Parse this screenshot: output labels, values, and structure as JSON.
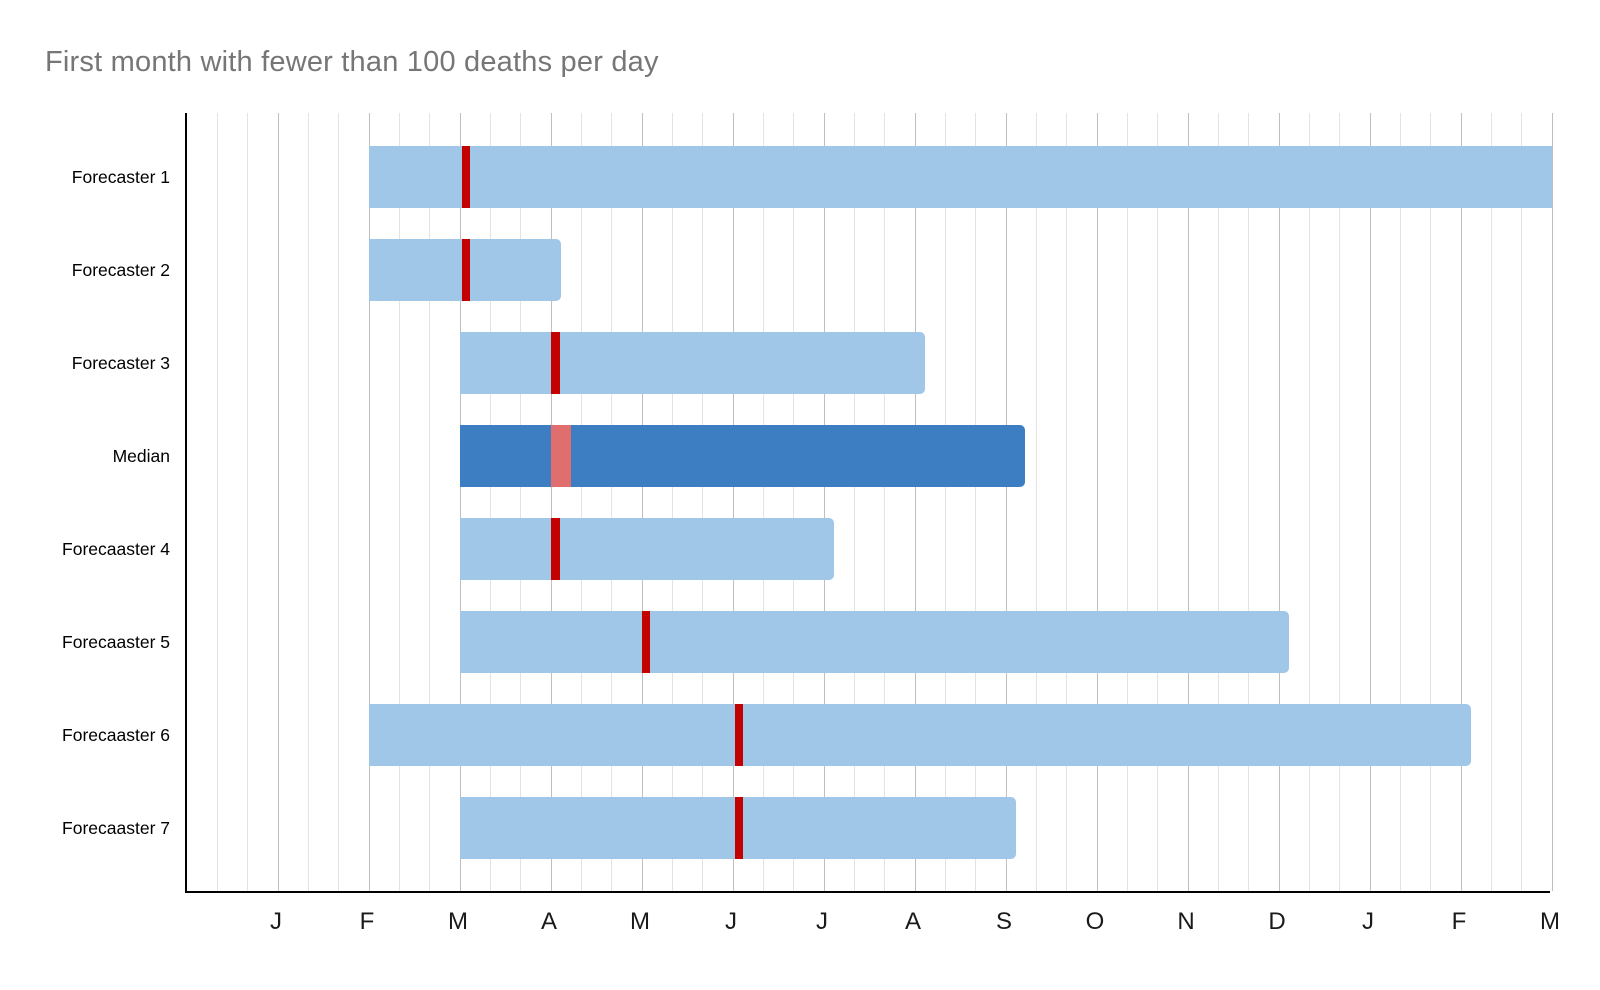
{
  "chart_data": {
    "type": "bar",
    "variant": "horizontal-range-gantt",
    "title": "First month with fewer than 100 deaths per day",
    "x_axis": {
      "unit": "months",
      "range": [
        0,
        15
      ],
      "tick_values": [
        1,
        2,
        3,
        4,
        5,
        6,
        7,
        8,
        9,
        10,
        11,
        12,
        13,
        14,
        15
      ],
      "tick_labels": [
        "J",
        "F",
        "M",
        "A",
        "M",
        "J",
        "J",
        "A",
        "S",
        "O",
        "N",
        "D",
        "J",
        "F",
        "M"
      ],
      "minor_divisions_per_month": 3,
      "grid": true,
      "legend": "none"
    },
    "rows": [
      {
        "label": "Forecaster 1",
        "start": 2.0,
        "end": 15.0,
        "marker_start": 3.02,
        "marker_width": 0.09,
        "median": false
      },
      {
        "label": "Forecaster 2",
        "start": 2.0,
        "end": 4.11,
        "marker_start": 3.02,
        "marker_width": 0.09,
        "median": false
      },
      {
        "label": "Forecaster 3",
        "start": 3.0,
        "end": 8.11,
        "marker_start": 4.0,
        "marker_width": 0.1,
        "median": false
      },
      {
        "label": "Median",
        "start": 3.0,
        "end": 9.21,
        "marker_start": 4.0,
        "marker_width": 0.22,
        "median": true
      },
      {
        "label": "Forecaaster 4",
        "start": 3.0,
        "end": 7.11,
        "marker_start": 4.0,
        "marker_width": 0.1,
        "median": false
      },
      {
        "label": "Forecaaster 5",
        "start": 3.0,
        "end": 12.11,
        "marker_start": 5.0,
        "marker_width": 0.09,
        "median": false
      },
      {
        "label": "Forecaaster 6",
        "start": 2.0,
        "end": 14.11,
        "marker_start": 6.02,
        "marker_width": 0.09,
        "median": false
      },
      {
        "label": "Forecaaster 7",
        "start": 3.0,
        "end": 9.11,
        "marker_start": 6.02,
        "marker_width": 0.09,
        "median": false
      }
    ],
    "colors": {
      "bar": "#a0c6e8",
      "median_bar": "#3d7ec2",
      "marker": "#c30101",
      "median_marker": "#e06e6e",
      "grid_minor": "#e3e3e3",
      "grid_major": "#bfbfbf",
      "axis": "#000000",
      "title": "#767676",
      "tick_label": "#1a1a1a",
      "row_label": "#000000",
      "background": "#ffffff"
    }
  }
}
